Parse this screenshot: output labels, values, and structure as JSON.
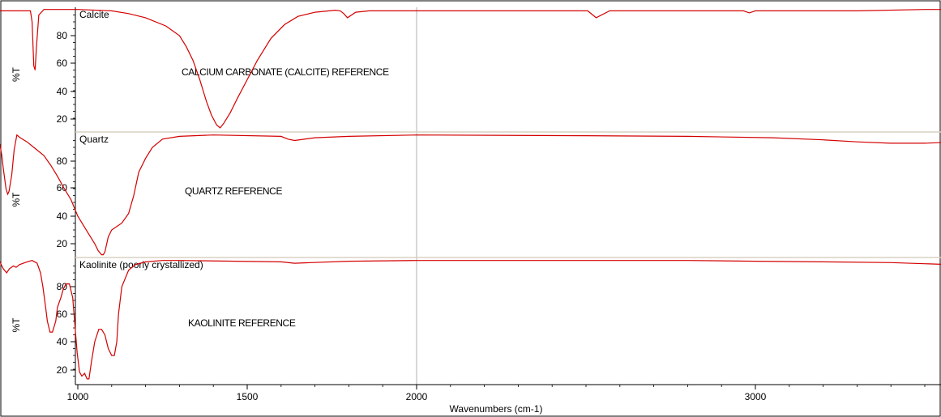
{
  "chart_data": {
    "type": "line",
    "xlabel": "Wavenumbers (cm-1)",
    "xlim": [
      4000,
      400
    ],
    "x_ticks": [
      3000,
      2000,
      1500,
      1000
    ],
    "x_tick_labels": [
      "3000",
      "2000",
      "1500",
      "1000"
    ],
    "x_reversed": true,
    "vertical_reference_line_x": 2000,
    "grid": false,
    "panels": [
      {
        "title": "Calcite",
        "annotation": "CALCIUM CARBONATE (CALCITE) REFERENCE",
        "ylabel": "%T",
        "ylim": [
          10,
          100
        ],
        "y_ticks": [
          "20",
          "40",
          "60",
          "80"
        ],
        "series": [
          {
            "color": "#d40000",
            "points": [
              [
                3990,
                99
              ],
              [
                3500,
                99
              ],
              [
                3300,
                98
              ],
              [
                3000,
                98
              ],
              [
                2982,
                96.5
              ],
              [
                2965,
                98
              ],
              [
                2880,
                98
              ],
              [
                2570,
                98
              ],
              [
                2530,
                93
              ],
              [
                2505,
                98
              ],
              [
                2000,
                98
              ],
              [
                1860,
                98
              ],
              [
                1820,
                97
              ],
              [
                1796,
                93
              ],
              [
                1785,
                96
              ],
              [
                1775,
                98
              ],
              [
                1760,
                98.5
              ],
              [
                1700,
                97
              ],
              [
                1650,
                94
              ],
              [
                1610,
                88
              ],
              [
                1570,
                78
              ],
              [
                1530,
                62
              ],
              [
                1500,
                48
              ],
              [
                1470,
                34
              ],
              [
                1450,
                24
              ],
              [
                1430,
                16
              ],
              [
                1420,
                13
              ],
              [
                1410,
                15
              ],
              [
                1395,
                22
              ],
              [
                1380,
                32
              ],
              [
                1360,
                48
              ],
              [
                1340,
                62
              ],
              [
                1320,
                72
              ],
              [
                1300,
                80
              ],
              [
                1260,
                87
              ],
              [
                1200,
                93
              ],
              [
                1150,
                96
              ],
              [
                1100,
                98
              ],
              [
                1000,
                99
              ],
              [
                900,
                99
              ],
              [
                885,
                95
              ],
              [
                878,
                72
              ],
              [
                874,
                55
              ],
              [
                870,
                58
              ],
              [
                865,
                90
              ],
              [
                860,
                98
              ],
              [
                780,
                98
              ],
              [
                740,
                98
              ],
              [
                720,
                92
              ],
              [
                712,
                89
              ],
              [
                704,
                95
              ],
              [
                700,
                98
              ],
              [
                600,
                99
              ],
              [
                400,
                99
              ]
            ]
          }
        ]
      },
      {
        "title": "Quartz",
        "annotation": "QUARTZ REFERENCE",
        "ylabel": "%T",
        "ylim": [
          10,
          100
        ],
        "y_ticks": [
          "20",
          "40",
          "60",
          "80"
        ],
        "series": [
          {
            "color": "#d40000",
            "points": [
              [
                3990,
                99
              ],
              [
                3800,
                99
              ],
              [
                3750,
                98
              ],
              [
                3700,
                96
              ],
              [
                3600,
                94
              ],
              [
                3500,
                93
              ],
              [
                3400,
                93
              ],
              [
                3300,
                94
              ],
              [
                3200,
                95.5
              ],
              [
                3050,
                97
              ],
              [
                2800,
                98
              ],
              [
                2500,
                98.5
              ],
              [
                2000,
                99
              ],
              [
                1800,
                98
              ],
              [
                1700,
                97
              ],
              [
                1640,
                95
              ],
              [
                1620,
                96
              ],
              [
                1600,
                98
              ],
              [
                1400,
                99
              ],
              [
                1300,
                98
              ],
              [
                1250,
                96
              ],
              [
                1220,
                90
              ],
              [
                1200,
                82
              ],
              [
                1180,
                72
              ],
              [
                1165,
                55
              ],
              [
                1150,
                42
              ],
              [
                1130,
                35
              ],
              [
                1100,
                30
              ],
              [
                1090,
                25
              ],
              [
                1080,
                14
              ],
              [
                1075,
                12
              ],
              [
                1070,
                12
              ],
              [
                1060,
                15
              ],
              [
                1050,
                20
              ],
              [
                1030,
                28
              ],
              [
                1000,
                40
              ],
              [
                980,
                52
              ],
              [
                960,
                60
              ],
              [
                940,
                69
              ],
              [
                920,
                77
              ],
              [
                900,
                84
              ],
              [
                870,
                90
              ],
              [
                850,
                94
              ],
              [
                830,
                97
              ],
              [
                820,
                99
              ],
              [
                812,
                88
              ],
              [
                805,
                70
              ],
              [
                797,
                58
              ],
              [
                793,
                56
              ],
              [
                788,
                60
              ],
              [
                780,
                75
              ],
              [
                775,
                85
              ],
              [
                770,
                92
              ],
              [
                760,
                95
              ],
              [
                740,
                96
              ],
              [
                720,
                95
              ],
              [
                700,
                92
              ],
              [
                695,
                91
              ],
              [
                690,
                93
              ],
              [
                680,
                96
              ],
              [
                660,
                98
              ],
              [
                640,
                99
              ],
              [
                600,
                99
              ],
              [
                560,
                99
              ],
              [
                540,
                98
              ],
              [
                520,
                92
              ],
              [
                510,
                80
              ],
              [
                500,
                70
              ],
              [
                495,
                62
              ],
              [
                490,
                60
              ],
              [
                480,
                68
              ],
              [
                470,
                70
              ],
              [
                465,
                67
              ],
              [
                455,
                55
              ],
              [
                445,
                45
              ],
              [
                440,
                40
              ],
              [
                430,
                36
              ],
              [
                425,
                36
              ]
            ]
          }
        ]
      },
      {
        "title": "Kaolinite (poorly crystallized)",
        "annotation": "KAOLINITE REFERENCE",
        "ylabel": "%T",
        "ylim": [
          10,
          100
        ],
        "y_ticks": [
          "20",
          "40",
          "60",
          "80"
        ],
        "series": [
          {
            "color": "#d40000",
            "points": [
              [
                3990,
                97
              ],
              [
                3750,
                97
              ],
              [
                3720,
                95
              ],
              [
                3705,
                85
              ],
              [
                3695,
                55
              ],
              [
                3690,
                44
              ],
              [
                3685,
                55
              ],
              [
                3675,
                68
              ],
              [
                3665,
                72
              ],
              [
                3660,
                70
              ],
              [
                3652,
                74
              ],
              [
                3645,
                75
              ],
              [
                3638,
                68
              ],
              [
                3630,
                62
              ],
              [
                3623,
                70
              ],
              [
                3620,
                90
              ],
              [
                3610,
                95
              ],
              [
                3580,
                96
              ],
              [
                3400,
                97.5
              ],
              [
                3200,
                98
              ],
              [
                3000,
                98.5
              ],
              [
                2800,
                99
              ],
              [
                2000,
                99
              ],
              [
                1800,
                98.5
              ],
              [
                1640,
                97
              ],
              [
                1600,
                98
              ],
              [
                1300,
                99
              ],
              [
                1250,
                99
              ],
              [
                1200,
                98
              ],
              [
                1170,
                96
              ],
              [
                1150,
                92
              ],
              [
                1130,
                80
              ],
              [
                1120,
                60
              ],
              [
                1115,
                40
              ],
              [
                1108,
                30
              ],
              [
                1100,
                30
              ],
              [
                1090,
                35
              ],
              [
                1080,
                45
              ],
              [
                1070,
                49
              ],
              [
                1062,
                49
              ],
              [
                1050,
                40
              ],
              [
                1040,
                25
              ],
              [
                1033,
                13
              ],
              [
                1027,
                13
              ],
              [
                1020,
                17
              ],
              [
                1012,
                15
              ],
              [
                1005,
                18
              ],
              [
                998,
                32
              ],
              [
                992,
                50
              ],
              [
                985,
                72
              ],
              [
                975,
                82
              ],
              [
                965,
                82
              ],
              [
                957,
                78
              ],
              [
                950,
                72
              ],
              [
                940,
                65
              ],
              [
                935,
                55
              ],
              [
                925,
                47
              ],
              [
                918,
                47
              ],
              [
                910,
                55
              ],
              [
                905,
                65
              ],
              [
                897,
                80
              ],
              [
                890,
                90
              ],
              [
                880,
                97
              ],
              [
                865,
                99
              ],
              [
                850,
                98
              ],
              [
                828,
                96
              ],
              [
                818,
                94
              ],
              [
                810,
                95
              ],
              [
                798,
                93
              ],
              [
                790,
                90
              ],
              [
                780,
                93
              ],
              [
                770,
                98
              ],
              [
                762,
                99
              ],
              [
                755,
                98
              ],
              [
                748,
                93
              ],
              [
                740,
                82
              ],
              [
                733,
                76
              ],
              [
                725,
                80
              ],
              [
                710,
                88
              ],
              [
                690,
                94
              ],
              [
                670,
                98
              ],
              [
                650,
                99
              ],
              [
                635,
                97
              ],
              [
                620,
                90
              ],
              [
                605,
                78
              ],
              [
                590,
                65
              ],
              [
                575,
                50
              ],
              [
                560,
                32
              ],
              [
                550,
                29
              ],
              [
                540,
                35
              ],
              [
                532,
                50
              ],
              [
                520,
                70
              ],
              [
                510,
                90
              ],
              [
                500,
                99
              ],
              [
                495,
                97
              ],
              [
                480,
                85
              ],
              [
                470,
                62
              ],
              [
                462,
                50
              ],
              [
                455,
                45
              ],
              [
                445,
                50
              ],
              [
                430,
                65
              ],
              [
                420,
                70
              ]
            ]
          }
        ]
      }
    ]
  }
}
